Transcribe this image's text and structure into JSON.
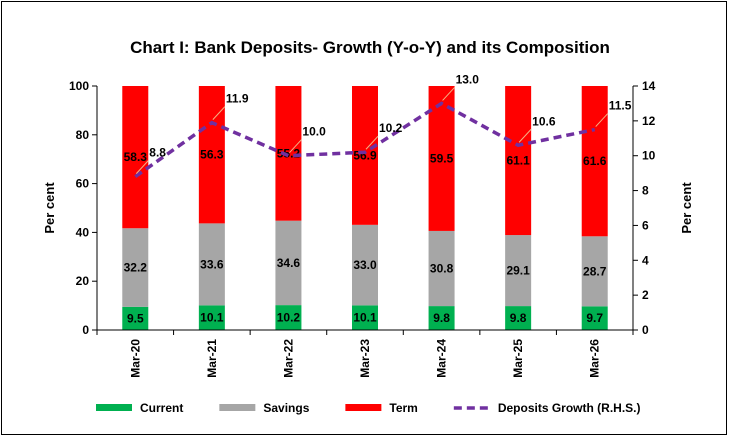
{
  "chart_data": {
    "type": "bar",
    "title": "Chart I: Bank Deposits- Growth (Y-o-Y) and its Composition",
    "ylabel": "Per cent",
    "y2label": "Per cent",
    "ylim": [
      0,
      100
    ],
    "y2lim": [
      0,
      14
    ],
    "yticks": [
      "0",
      "20",
      "40",
      "60",
      "80",
      "100"
    ],
    "y2ticks": [
      "0",
      "2",
      "4",
      "6",
      "8",
      "10",
      "12",
      "14"
    ],
    "categories": [
      "Mar-20",
      "Mar-21",
      "Mar-22",
      "Mar-23",
      "Mar-24",
      "Mar-25",
      "Mar-26"
    ],
    "stacked": true,
    "series": [
      {
        "name": "Current",
        "color": "#00b050",
        "values": [
          9.5,
          10.1,
          10.2,
          10.1,
          9.8,
          9.8,
          9.7
        ],
        "labels": [
          "9.5",
          "10.1",
          "10.2",
          "10.1",
          "9.8",
          "9.8",
          "9.7"
        ]
      },
      {
        "name": "Savings",
        "color": "#a6a6a6",
        "values": [
          32.2,
          33.6,
          34.6,
          33.0,
          30.8,
          29.1,
          28.7
        ],
        "labels": [
          "32.2",
          "33.6",
          "34.6",
          "33.0",
          "30.8",
          "29.1",
          "28.7"
        ]
      },
      {
        "name": "Term",
        "color": "#ff0000",
        "values": [
          58.3,
          56.3,
          55.2,
          56.9,
          59.5,
          61.1,
          61.6
        ],
        "labels": [
          "58.3",
          "56.3",
          "55.2",
          "56.9",
          "59.5",
          "61.1",
          "61.6"
        ]
      }
    ],
    "line_series": {
      "name": "Deposits Growth (R.H.S.)",
      "color": "#7030a0",
      "axis": "right",
      "values": [
        8.8,
        11.9,
        10.0,
        10.2,
        13.0,
        10.6,
        11.5
      ],
      "labels": [
        "8.8",
        "11.9",
        "10.0",
        "10.2",
        "13.0",
        "10.6",
        "11.5"
      ]
    },
    "legend": "bottom",
    "grid": false
  }
}
